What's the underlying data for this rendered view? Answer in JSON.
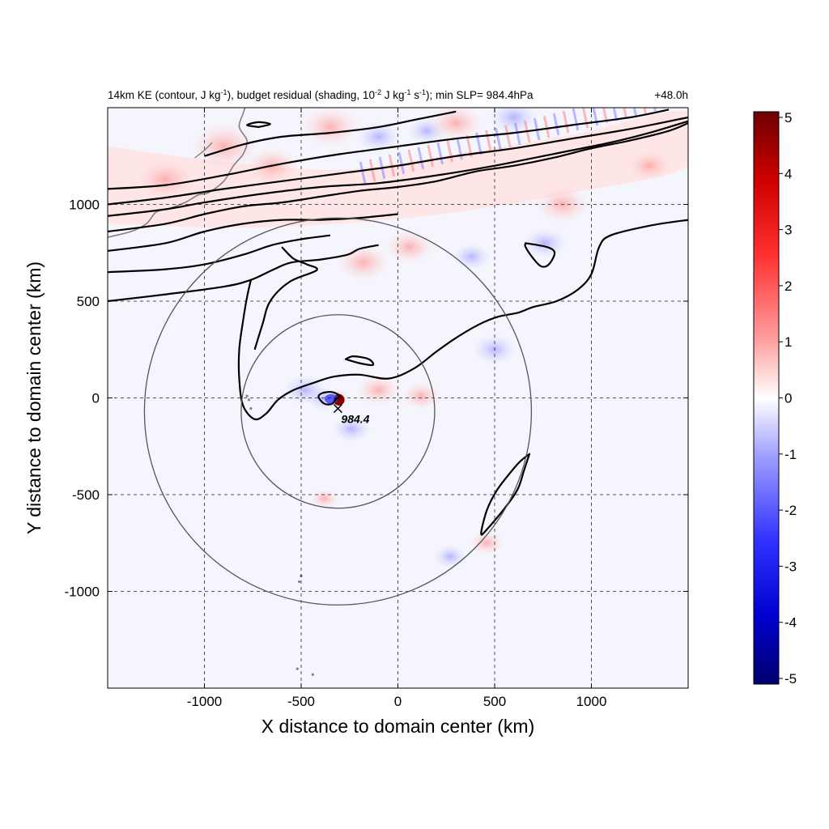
{
  "chart_data": {
    "type": "heatmap",
    "title": "14km KE (contour, J kg",
    "title_parts": {
      "a": "14km KE (contour, J kg",
      "a_sup": "-1",
      "b": "), budget residual (shading, 10",
      "b_sup": "-2",
      "c": " J kg",
      "c_sup": "-1",
      "d": " s",
      "d_sup": "-1",
      "e": "); min SLP= 984.4hPa"
    },
    "time_label": "+48.0h",
    "xlabel": "X distance to domain center (km)",
    "ylabel": "Y distance to domain center (km)",
    "xlim": [
      -1500,
      1500
    ],
    "ylim": [
      -1500,
      1500
    ],
    "x_ticks": [
      -1000,
      -500,
      0,
      500,
      1000
    ],
    "x_tick_labels": [
      "-1000",
      "-500",
      "0",
      "500",
      "1000"
    ],
    "y_ticks": [
      -1000,
      -500,
      0,
      500,
      1000
    ],
    "y_tick_labels": [
      "-1000",
      "-500",
      "0",
      "500",
      "1000"
    ],
    "grid": "dashed",
    "colorbar": {
      "min": -5,
      "max": 5,
      "ticks": [
        5,
        4,
        3,
        2,
        1,
        0,
        -1,
        -2,
        -3,
        -4,
        -5
      ],
      "tick_labels": [
        "5",
        "4",
        "3",
        "2",
        "1",
        "0",
        "-1",
        "-2",
        "-3",
        "-4",
        "-5"
      ],
      "colors": {
        "low": "#00006e",
        "mid_low": "#3c3cff",
        "zero": "#ffffff",
        "mid_high": "#ff3c3c",
        "high": "#6e0000"
      }
    },
    "storm_center": {
      "x": -310,
      "y": -55
    },
    "storm_label": "984.4",
    "range_circles": [
      {
        "center_x": -310,
        "center_y": -70,
        "radius_km": 500
      },
      {
        "center_x": -310,
        "center_y": -70,
        "radius_km": 1000
      }
    ],
    "ke_contours": [
      [
        [
          -1500,
          500
        ],
        [
          -1200,
          535
        ],
        [
          -900,
          575
        ],
        [
          -760,
          610
        ],
        [
          -640,
          665
        ],
        [
          -550,
          700
        ],
        [
          -400,
          715
        ],
        [
          -260,
          740
        ],
        [
          -200,
          770
        ],
        [
          -100,
          790
        ]
      ],
      [
        [
          -1500,
          650
        ],
        [
          -1200,
          665
        ],
        [
          -1000,
          690
        ],
        [
          -800,
          740
        ],
        [
          -650,
          790
        ],
        [
          -500,
          820
        ],
        [
          -350,
          840
        ]
      ],
      [
        [
          -1500,
          760
        ],
        [
          -1200,
          800
        ],
        [
          -1000,
          860
        ],
        [
          -800,
          900
        ],
        [
          -600,
          920
        ],
        [
          -400,
          920
        ],
        [
          -200,
          930
        ],
        [
          0,
          950
        ]
      ],
      [
        [
          -1500,
          860
        ],
        [
          -1200,
          900
        ],
        [
          -1000,
          950
        ],
        [
          -800,
          990
        ],
        [
          -600,
          1010
        ],
        [
          -400,
          1040
        ],
        [
          -200,
          1070
        ],
        [
          0,
          1090
        ],
        [
          200,
          1120
        ],
        [
          400,
          1170
        ],
        [
          600,
          1200
        ],
        [
          800,
          1240
        ],
        [
          1000,
          1290
        ],
        [
          1200,
          1330
        ],
        [
          1400,
          1380
        ],
        [
          1500,
          1420
        ]
      ],
      [
        [
          -1500,
          940
        ],
        [
          -1200,
          975
        ],
        [
          -1000,
          1010
        ],
        [
          -700,
          1055
        ],
        [
          -400,
          1090
        ],
        [
          -100,
          1110
        ],
        [
          200,
          1150
        ],
        [
          500,
          1200
        ],
        [
          800,
          1260
        ],
        [
          1100,
          1320
        ],
        [
          1300,
          1370
        ],
        [
          1500,
          1430
        ]
      ],
      [
        [
          -1500,
          1000
        ],
        [
          -1200,
          1035
        ],
        [
          -900,
          1080
        ],
        [
          -600,
          1120
        ],
        [
          -300,
          1160
        ],
        [
          0,
          1200
        ],
        [
          300,
          1250
        ],
        [
          600,
          1290
        ],
        [
          900,
          1340
        ],
        [
          1200,
          1390
        ],
        [
          1500,
          1450
        ]
      ],
      [
        [
          -1500,
          1080
        ],
        [
          -1200,
          1100
        ],
        [
          -900,
          1150
        ],
        [
          -600,
          1210
        ],
        [
          -300,
          1260
        ],
        [
          0,
          1300
        ],
        [
          300,
          1340
        ],
        [
          600,
          1370
        ],
        [
          900,
          1410
        ],
        [
          1200,
          1450
        ],
        [
          1400,
          1490
        ]
      ],
      [
        [
          -1000,
          1250
        ],
        [
          -800,
          1310
        ],
        [
          -600,
          1350
        ],
        [
          -350,
          1370
        ],
        [
          -100,
          1400
        ],
        [
          100,
          1440
        ],
        [
          300,
          1480
        ]
      ]
    ],
    "ke_contour_closed": [
      [
        [
          -320,
          -5
        ],
        [
          -300,
          10
        ],
        [
          -340,
          30
        ],
        [
          -390,
          25
        ],
        [
          -410,
          5
        ],
        [
          -380,
          -30
        ],
        [
          -340,
          -30
        ],
        [
          -320,
          -5
        ]
      ],
      [
        [
          -270,
          200
        ],
        [
          -200,
          180
        ],
        [
          -130,
          170
        ],
        [
          -150,
          200
        ],
        [
          -230,
          215
        ],
        [
          -270,
          200
        ]
      ],
      [
        [
          -720,
          1400
        ],
        [
          -660,
          1415
        ],
        [
          -720,
          1425
        ],
        [
          -780,
          1410
        ],
        [
          -720,
          1400
        ]
      ],
      [
        [
          680,
          -290
        ],
        [
          650,
          -380
        ],
        [
          620,
          -470
        ],
        [
          560,
          -560
        ],
        [
          460,
          -680
        ],
        [
          430,
          -700
        ],
        [
          460,
          -580
        ],
        [
          510,
          -480
        ],
        [
          570,
          -400
        ],
        [
          630,
          -330
        ],
        [
          680,
          -290
        ]
      ],
      [
        [
          660,
          800
        ],
        [
          770,
          780
        ],
        [
          810,
          750
        ],
        [
          780,
          690
        ],
        [
          740,
          680
        ],
        [
          700,
          720
        ],
        [
          660,
          780
        ],
        [
          660,
          800
        ]
      ]
    ]
  }
}
